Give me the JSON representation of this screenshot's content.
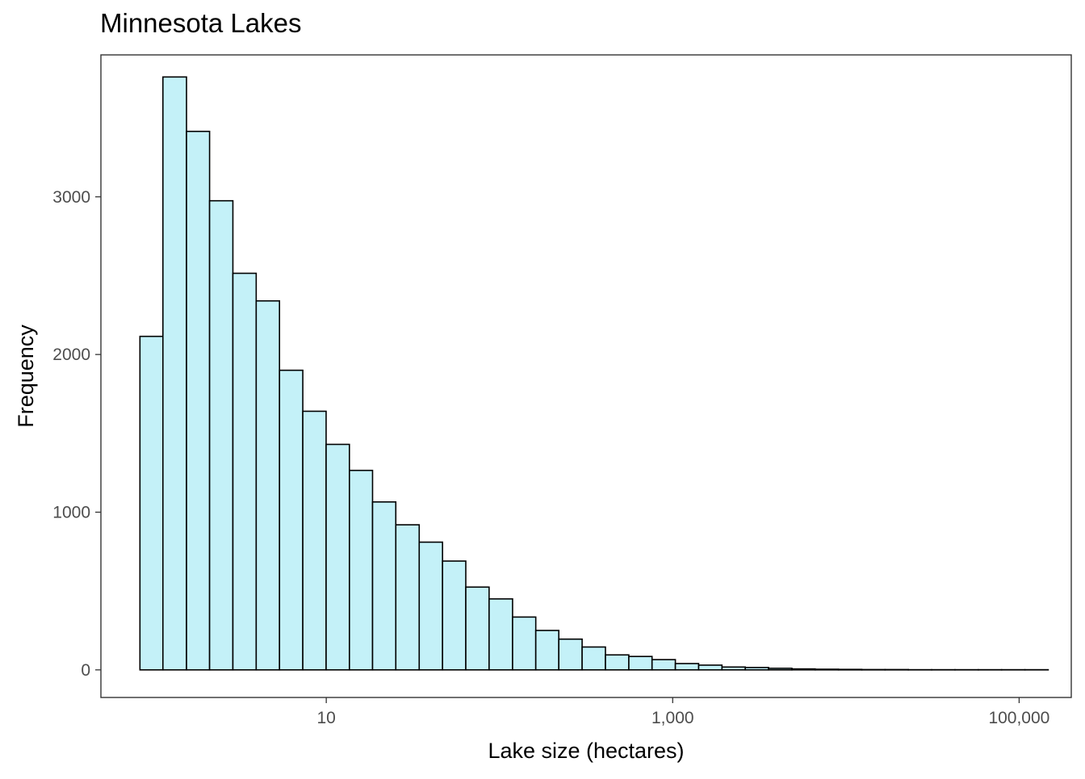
{
  "chart_data": {
    "type": "bar",
    "title": "Minnesota Lakes",
    "xlabel": "Lake size (hectares)",
    "ylabel": "Frequency",
    "x_scale": "log10",
    "xlim": [
      0.5,
      200000
    ],
    "ylim": [
      -175,
      3900
    ],
    "x_ticks": [
      {
        "value": 10,
        "label": "10"
      },
      {
        "value": 1000,
        "label": "1,000"
      },
      {
        "value": 100000,
        "label": "100,000"
      }
    ],
    "y_ticks": [
      {
        "value": 0,
        "label": "0"
      },
      {
        "value": 1000,
        "label": "1000"
      },
      {
        "value": 2000,
        "label": "2000"
      },
      {
        "value": 3000,
        "label": "3000"
      }
    ],
    "bin_edges": [
      0.84,
      1.14,
      1.56,
      2.12,
      2.89,
      3.94,
      5.37,
      7.32,
      9.98,
      13.6,
      18.5,
      25.2,
      34.4,
      46.9,
      63.9,
      87.1,
      119,
      162,
      220,
      300,
      409,
      558,
      760,
      1036,
      1412,
      1925,
      2624,
      3577,
      4876,
      6647,
      9060,
      12350,
      16830,
      22940,
      31270,
      42630,
      58110,
      79200,
      108000,
      147200
    ],
    "values": [
      2115,
      3760,
      3415,
      2975,
      2515,
      2340,
      1900,
      1640,
      1430,
      1265,
      1065,
      920,
      810,
      690,
      525,
      450,
      335,
      250,
      195,
      145,
      95,
      85,
      65,
      40,
      30,
      18,
      15,
      10,
      6,
      4,
      3,
      2,
      2,
      1,
      1,
      1,
      1,
      1,
      1
    ],
    "bar_fill": "#c4f1f8",
    "bar_stroke": "#000000",
    "grid": false,
    "legend": "none"
  }
}
